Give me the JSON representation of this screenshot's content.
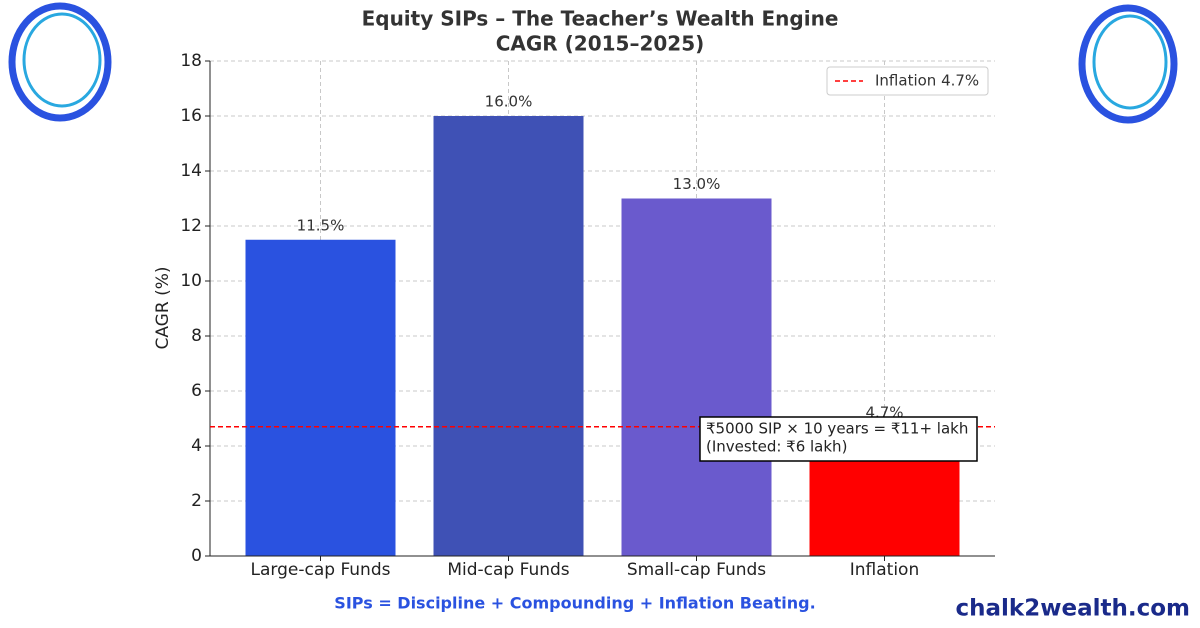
{
  "chart_data": {
    "type": "bar",
    "title": [
      "Equity SIPs – The Teacher’s Wealth Engine",
      "CAGR (2015–2025)"
    ],
    "ylabel": "CAGR (%)",
    "categories": [
      "Large-cap Funds",
      "Mid-cap Funds",
      "Small-cap Funds",
      "Inflation"
    ],
    "values": [
      11.5,
      16.0,
      13.0,
      4.7
    ],
    "value_labels": [
      "11.5%",
      "16.0%",
      "13.0%",
      "4.7%"
    ],
    "colors": [
      "#2a52e0",
      "#3f51b5",
      "#6a5acd",
      "#ff0000"
    ],
    "ylim": [
      0,
      18
    ],
    "yticks": [
      0,
      2,
      4,
      6,
      8,
      10,
      12,
      14,
      16,
      18
    ],
    "grid": true,
    "reference_line": {
      "value": 4.7,
      "label": "Inflation 4.7%",
      "color": "#ff0000"
    },
    "legend": "upper right",
    "annotation": [
      "₹5000 SIP × 10 years = ₹11+ lakh",
      "(Invested: ₹6 lakh)"
    ],
    "footer": "SIPs = Discipline + Compounding + Inflation Beating.",
    "brand": "chalk2wealth.com"
  }
}
